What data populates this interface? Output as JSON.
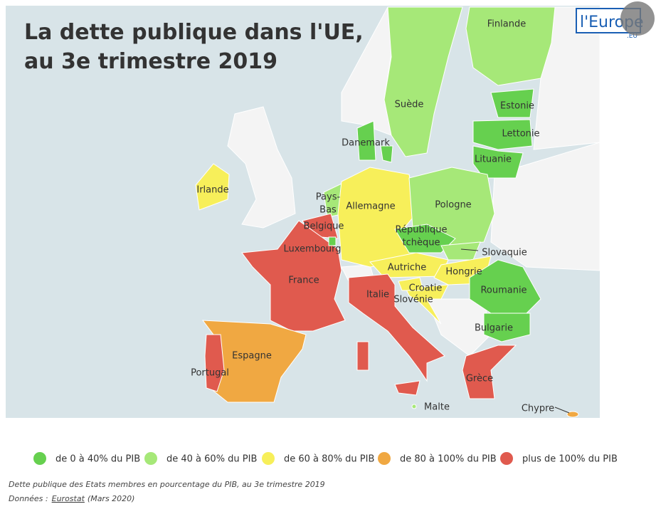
{
  "title": [
    "La dette publique dans l'UE,",
    "au 3e trimestre 2019"
  ],
  "logo": {
    "text": "l'Europe",
    "sub": ".EU"
  },
  "countries": [
    {
      "label": [
        "Finlande"
      ],
      "color": "#a6e878"
    },
    {
      "label": [
        "Suède"
      ],
      "color": "#a6e878"
    },
    {
      "label": [
        "Estonie"
      ],
      "color": "#66d04f"
    },
    {
      "label": [
        "Lettonie"
      ],
      "color": "#66d04f"
    },
    {
      "label": [
        "Lituanie"
      ],
      "color": "#66d04f"
    },
    {
      "label": [
        "Danemark"
      ],
      "color": "#66d04f"
    },
    {
      "label": [
        "Irlande"
      ],
      "color": "#f7ef5a"
    },
    {
      "label": [
        "Pays-",
        "Bas"
      ],
      "color": "#a6e878"
    },
    {
      "label": [
        "Allemagne"
      ],
      "color": "#f7ef5a"
    },
    {
      "label": [
        "Pologne"
      ],
      "color": "#a6e878"
    },
    {
      "label": [
        "Belgique"
      ],
      "color": "#e05a4e"
    },
    {
      "label": [
        "Luxembourg"
      ],
      "color": "#66d04f"
    },
    {
      "label": [
        "République",
        "tchèque"
      ],
      "color": "#66d04f"
    },
    {
      "label": [
        "Slovaquie"
      ],
      "color": "#a6e878"
    },
    {
      "label": [
        "Autriche"
      ],
      "color": "#f7ef5a"
    },
    {
      "label": [
        "Hongrie"
      ],
      "color": "#f7ef5a"
    },
    {
      "label": [
        "France"
      ],
      "color": "#e05a4e"
    },
    {
      "label": [
        "Roumanie"
      ],
      "color": "#66d04f"
    },
    {
      "label": [
        "Italie"
      ],
      "color": "#e05a4e"
    },
    {
      "label": [
        "Croatie"
      ],
      "color": "#f7ef5a"
    },
    {
      "label": [
        "Slovénie"
      ],
      "color": "#f7ef5a"
    },
    {
      "label": [
        "Bulgarie"
      ],
      "color": "#66d04f"
    },
    {
      "label": [
        "Espagne"
      ],
      "color": "#f0a842"
    },
    {
      "label": [
        "Portugal"
      ],
      "color": "#e05a4e"
    },
    {
      "label": [
        "Grèce"
      ],
      "color": "#e05a4e"
    },
    {
      "label": [
        "Malte"
      ],
      "color": "#a6e878"
    },
    {
      "label": [
        "Chypre"
      ],
      "color": "#f0a842"
    }
  ],
  "legend": [
    {
      "label": "de 0 à 40% du PIB",
      "color": "#66d04f"
    },
    {
      "label": "de 40 à 60% du PIB",
      "color": "#a6e878"
    },
    {
      "label": "de 60 à 80% du PIB",
      "color": "#f7ef5a"
    },
    {
      "label": "de 80 à 100% du PIB",
      "color": "#f0a842"
    },
    {
      "label": "plus de 100% du PIB",
      "color": "#e05a4e"
    }
  ],
  "caption": "Dette publique des Etats membres en pourcentage du PIB, au 3e trimestre 2019",
  "source": {
    "prefix": "Données :",
    "link": "Eurostat",
    "date": "(Mars 2020)"
  }
}
